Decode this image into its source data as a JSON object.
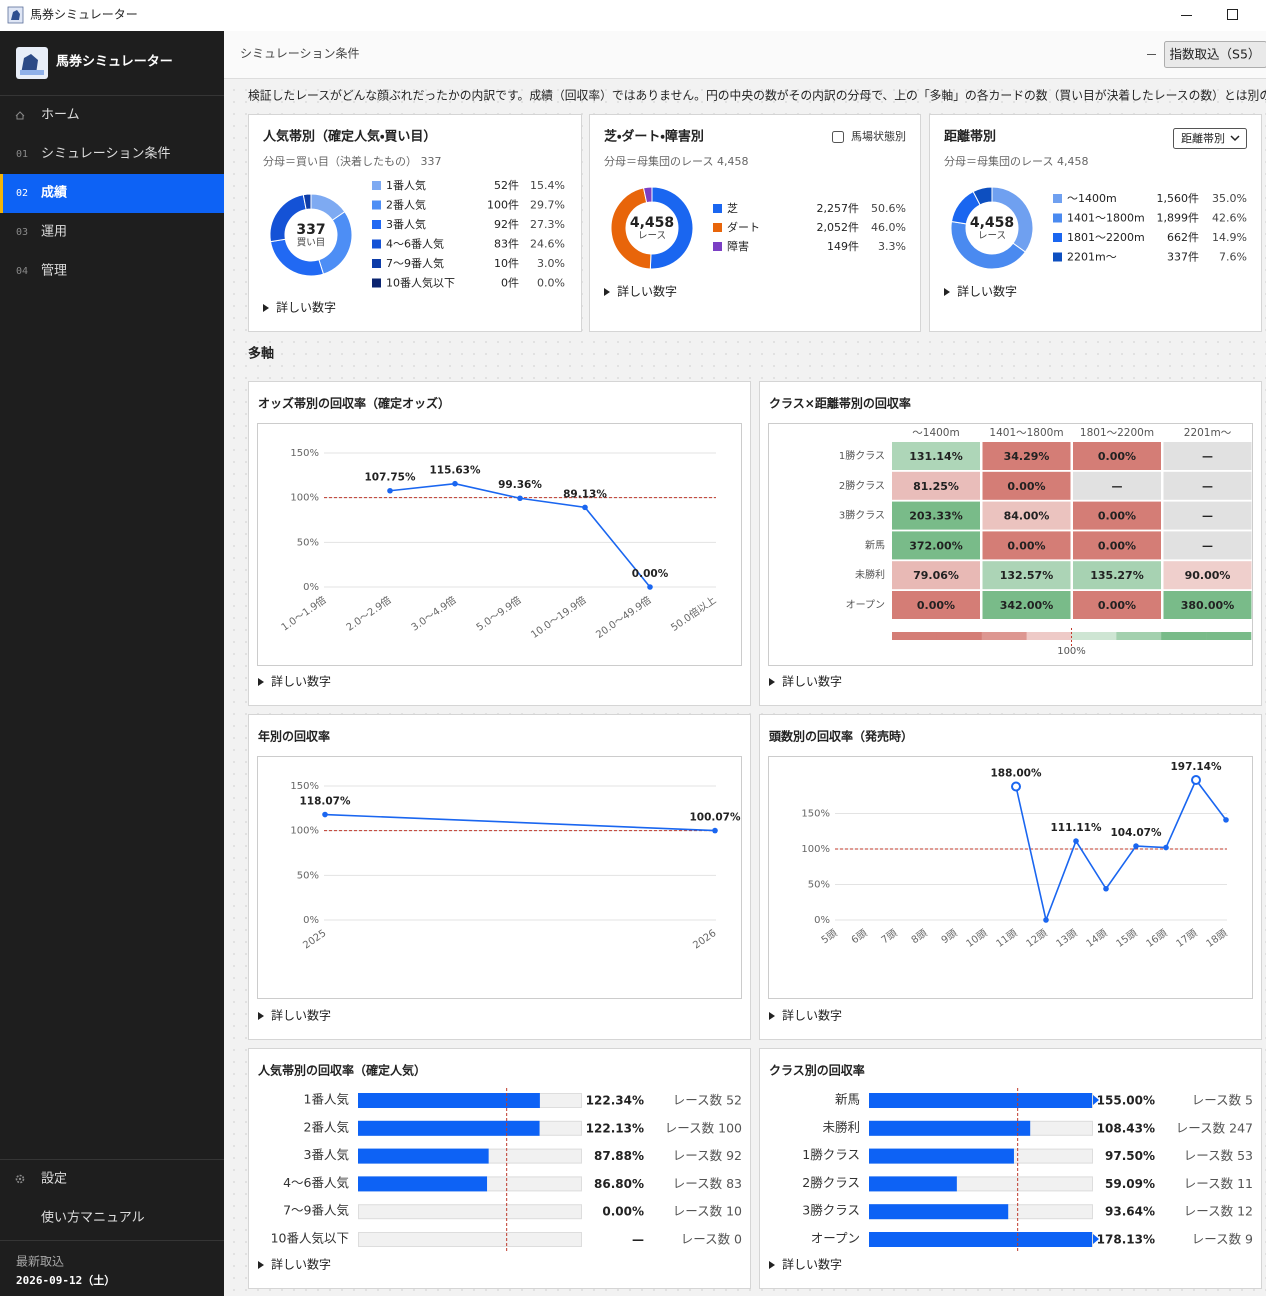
{
  "window": {
    "title": "馬券シミュレーター"
  },
  "sidebar": {
    "app_name": "馬券シミュレーター",
    "nav": [
      {
        "label": "ホーム"
      },
      {
        "number": "01",
        "label": "シミュレーション条件"
      },
      {
        "number": "02",
        "label": "成績",
        "active": true
      },
      {
        "number": "03",
        "label": "運用"
      },
      {
        "number": "04",
        "label": "管理"
      }
    ],
    "footer_nav": [
      {
        "label": "設定"
      },
      {
        "label": "使い方マニュアル"
      }
    ],
    "last_import": {
      "label": "最新取込",
      "date": "2026-09-12（土）"
    }
  },
  "header": {
    "title": "シミュレーション条件",
    "button": "指数取込（S5）"
  },
  "intro": "検証したレースがどんな顔ぶれだったかの内訳です。成績（回収率）ではありません。円の中央の数がその内訳の分母で、上の「多軸」の各カードの数（買い目が決着したレースの数）とは別の数です。",
  "breakdowns": [
    {
      "title": "人気帯別（確定人気・買い目）",
      "denominator": "分母＝買い目（決着したもの） 337",
      "center_value": "337",
      "center_unit": "買い目",
      "details": "詳しい数字",
      "items": [
        {
          "name": "1番人気",
          "color": "#7eaaf2",
          "count": "52件",
          "share": {
            "value": 15.4,
            "label": "15.4%"
          }
        },
        {
          "name": "2番人気",
          "color": "#4d8ef5",
          "count": "100件",
          "share": {
            "value": 29.7,
            "label": "29.7%"
          }
        },
        {
          "name": "3番人気",
          "color": "#2169f3",
          "count": "92件",
          "share": {
            "value": 27.3,
            "label": "27.3%"
          }
        },
        {
          "name": "4〜6番人気",
          "color": "#1452d6",
          "count": "83件",
          "share": {
            "value": 24.6,
            "label": "24.6%"
          }
        },
        {
          "name": "7〜9番人気",
          "color": "#0d3ca8",
          "count": "10件",
          "share": {
            "value": 3.0,
            "label": "3.0%"
          }
        },
        {
          "name": "10番人気以下",
          "color": "#0a2470",
          "count": "0件",
          "share": {
            "value": 0.0,
            "label": "0.0%"
          }
        }
      ]
    },
    {
      "title": "芝・ダート・障害別",
      "option": {
        "kind": "checkbox",
        "label": "馬場状態別"
      },
      "denominator": "分母＝母集団のレース 4,458",
      "center_value": "4,458",
      "center_unit": "レース",
      "details": "詳しい数字",
      "items": [
        {
          "name": "芝",
          "color": "#1a66f0",
          "count": "2,257件",
          "share": {
            "value": 50.6,
            "label": "50.6%"
          }
        },
        {
          "name": "ダート",
          "color": "#e8650a",
          "count": "2,052件",
          "share": {
            "value": 46.0,
            "label": "46.0%"
          }
        },
        {
          "name": "障害",
          "color": "#7b3fc4",
          "count": "149件",
          "share": {
            "value": 3.3,
            "label": "3.3%"
          }
        }
      ]
    },
    {
      "title": "距離帯別",
      "option": {
        "kind": "select",
        "label": "距離帯別"
      },
      "denominator": "分母＝母集団のレース 4,458",
      "center_value": "4,458",
      "center_unit": "レース",
      "details": "詳しい数字",
      "items": [
        {
          "name": "〜1400m",
          "color": "#6fa0f0",
          "count": "1,560件",
          "share": {
            "value": 35.0,
            "label": "35.0%"
          }
        },
        {
          "name": "1401〜1800m",
          "color": "#4a8af0",
          "count": "1,899件",
          "share": {
            "value": 42.6,
            "label": "42.6%"
          }
        },
        {
          "name": "1801〜2200m",
          "color": "#1a66f0",
          "count": "662件",
          "share": {
            "value": 14.9,
            "label": "14.9%"
          }
        },
        {
          "name": "2201m〜",
          "color": "#0d4fc0",
          "count": "337件",
          "share": {
            "value": 7.6,
            "label": "7.6%"
          }
        }
      ]
    }
  ],
  "section_title": "多軸",
  "panels": [
    {
      "type": "line",
      "title": "オッズ帯別の回収率（確定オッズ）",
      "categories": [
        "1.0〜1.9倍",
        "2.0〜2.9倍",
        "3.0〜4.9倍",
        "5.0〜9.9倍",
        "10.0〜19.9倍",
        "20.0〜49.9倍",
        "50.0倍以上"
      ],
      "values": [
        null,
        107.75,
        115.63,
        99.36,
        89.13,
        0.0,
        null
      ],
      "value_labels": [
        null,
        "107.75%",
        "115.63%",
        "99.36%",
        "89.13%",
        "0.00%",
        null
      ],
      "color": "#1a66f0",
      "ylim": [
        0,
        150
      ],
      "yticks": [
        {
          "value": 0,
          "label": "0%"
        },
        {
          "value": 50,
          "label": "50%"
        },
        {
          "value": 100,
          "label": "100%"
        },
        {
          "value": 150,
          "label": "150%"
        }
      ],
      "reference_line": 100,
      "details": "詳しい数字"
    },
    {
      "type": "heatmap",
      "title": "クラス×距離帯別の回収率",
      "columns": [
        "〜1400m",
        "1401〜1800m",
        "1801〜2200m",
        "2201m〜"
      ],
      "rows": [
        "1勝クラス",
        "2勝クラス",
        "3勝クラス",
        "新馬",
        "未勝利",
        "オープン"
      ],
      "values": [
        [
          131.14,
          34.29,
          0.0,
          null
        ],
        [
          81.25,
          0.0,
          null,
          null
        ],
        [
          203.33,
          84.0,
          0.0,
          null
        ],
        [
          372.0,
          0.0,
          0.0,
          null
        ],
        [
          79.06,
          132.57,
          135.27,
          90.0
        ],
        [
          0.0,
          342.0,
          0.0,
          380.0
        ]
      ],
      "value_labels": [
        [
          "131.14%",
          "34.29%",
          "0.00%",
          "—"
        ],
        [
          "81.25%",
          "0.00%",
          "—",
          "—"
        ],
        [
          "203.33%",
          "84.00%",
          "0.00%",
          "—"
        ],
        [
          "372.00%",
          "0.00%",
          "0.00%",
          "—"
        ],
        [
          "79.06%",
          "132.57%",
          "135.27%",
          "90.00%"
        ],
        [
          "0.00%",
          "342.00%",
          "0.00%",
          "380.00%"
        ]
      ],
      "legend_mid": {
        "value": 100,
        "label": "100%"
      },
      "details": "詳しい数字"
    },
    {
      "type": "line",
      "title": "年別の回収率",
      "categories": [
        "2025",
        "2026"
      ],
      "values": [
        118.07,
        100.07
      ],
      "value_labels": [
        "118.07%",
        "100.07%"
      ],
      "color": "#1a66f0",
      "ylim": [
        0,
        150
      ],
      "yticks": [
        {
          "value": 0,
          "label": "0%"
        },
        {
          "value": 50,
          "label": "50%"
        },
        {
          "value": 100,
          "label": "100%"
        },
        {
          "value": 150,
          "label": "150%"
        }
      ],
      "reference_line": 100,
      "details": "詳しい数字"
    },
    {
      "type": "line",
      "title": "頭数別の回収率（発売時）",
      "categories": [
        "5頭",
        "6頭",
        "7頭",
        "8頭",
        "9頭",
        "10頭",
        "11頭",
        "12頭",
        "13頭",
        "14頭",
        "15頭",
        "16頭",
        "17頭",
        "18頭"
      ],
      "values": [
        null,
        null,
        null,
        null,
        null,
        null,
        188.0,
        0.0,
        111.11,
        44,
        104.07,
        102,
        197.14,
        141
      ],
      "value_labels": [
        null,
        null,
        null,
        null,
        null,
        null,
        "188.00%",
        null,
        "111.11%",
        null,
        "104.07%",
        null,
        "197.14%",
        null
      ],
      "color": "#1a66f0",
      "ylim": [
        0,
        150
      ],
      "yticks": [
        {
          "value": 0,
          "label": "0%"
        },
        {
          "value": 50,
          "label": "50%"
        },
        {
          "value": 100,
          "label": "100%"
        },
        {
          "value": 150,
          "label": "150%"
        }
      ],
      "reference_line": 100,
      "details": "詳しい数字"
    },
    {
      "type": "hbar",
      "title": "人気帯別の回収率（確定人気）",
      "categories": [
        "1番人気",
        "2番人気",
        "3番人気",
        "4〜6番人気",
        "7〜9番人気",
        "10番人気以下"
      ],
      "values": [
        122.34,
        122.13,
        87.88,
        86.8,
        0.0,
        null
      ],
      "value_labels": [
        "122.34%",
        "122.13%",
        "87.88%",
        "86.80%",
        "0.00%",
        "—"
      ],
      "counts": [
        "レース数 52",
        "レース数 100",
        "レース数 92",
        "レース数 83",
        "レース数 10",
        "レース数 0"
      ],
      "color": "#0d62f5",
      "xlim": [
        0,
        150
      ],
      "reference_line": 100,
      "details": "詳しい数字"
    },
    {
      "type": "hbar",
      "title": "クラス別の回収率",
      "categories": [
        "新馬",
        "未勝利",
        "1勝クラス",
        "2勝クラス",
        "3勝クラス",
        "オープン"
      ],
      "values": [
        155.0,
        108.43,
        97.5,
        59.09,
        93.64,
        178.13
      ],
      "value_labels": [
        "155.00%",
        "108.43%",
        "97.50%",
        "59.09%",
        "93.64%",
        "178.13%"
      ],
      "counts": [
        "レース数 5",
        "レース数 247",
        "レース数 53",
        "レース数 11",
        "レース数 12",
        "レース数 9"
      ],
      "color": "#0d62f5",
      "xlim": [
        0,
        150
      ],
      "reference_line": 100,
      "details": "詳しい数字"
    }
  ]
}
